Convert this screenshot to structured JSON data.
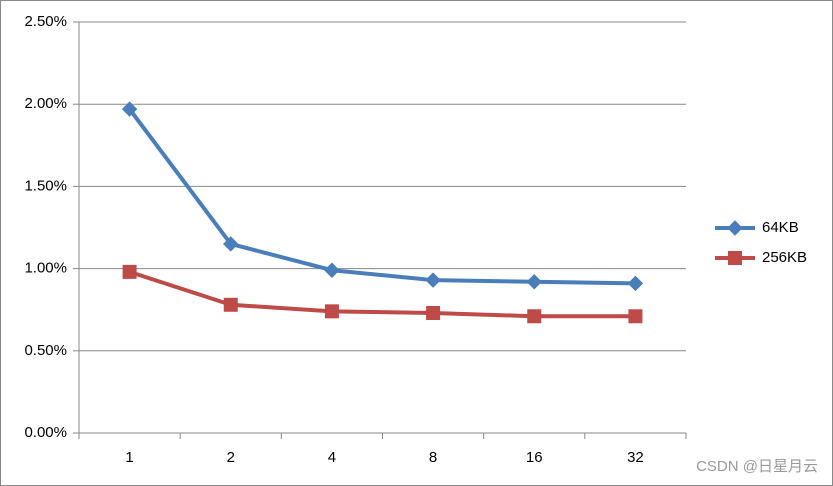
{
  "chart_data": {
    "type": "line",
    "categories": [
      "1",
      "2",
      "4",
      "8",
      "16",
      "32"
    ],
    "series": [
      {
        "name": "64KB",
        "color": "#4a7ebb",
        "marker": "diamond",
        "values": [
          1.97,
          1.15,
          0.99,
          0.93,
          0.92,
          0.91
        ]
      },
      {
        "name": "256KB",
        "color": "#be4b48",
        "marker": "square",
        "values": [
          0.98,
          0.78,
          0.74,
          0.73,
          0.71,
          0.71
        ]
      }
    ],
    "ylim": [
      0,
      2.5
    ],
    "yticks": [
      {
        "value": 0,
        "label": "0.00%"
      },
      {
        "value": 0.5,
        "label": "0.50%"
      },
      {
        "value": 1,
        "label": "1.00%"
      },
      {
        "value": 1.5,
        "label": "1.50%"
      },
      {
        "value": 2,
        "label": "2.00%"
      },
      {
        "value": 2.5,
        "label": "2.50%"
      }
    ],
    "grid": true,
    "legend": "right",
    "watermark": "CSDN @日星月云"
  }
}
